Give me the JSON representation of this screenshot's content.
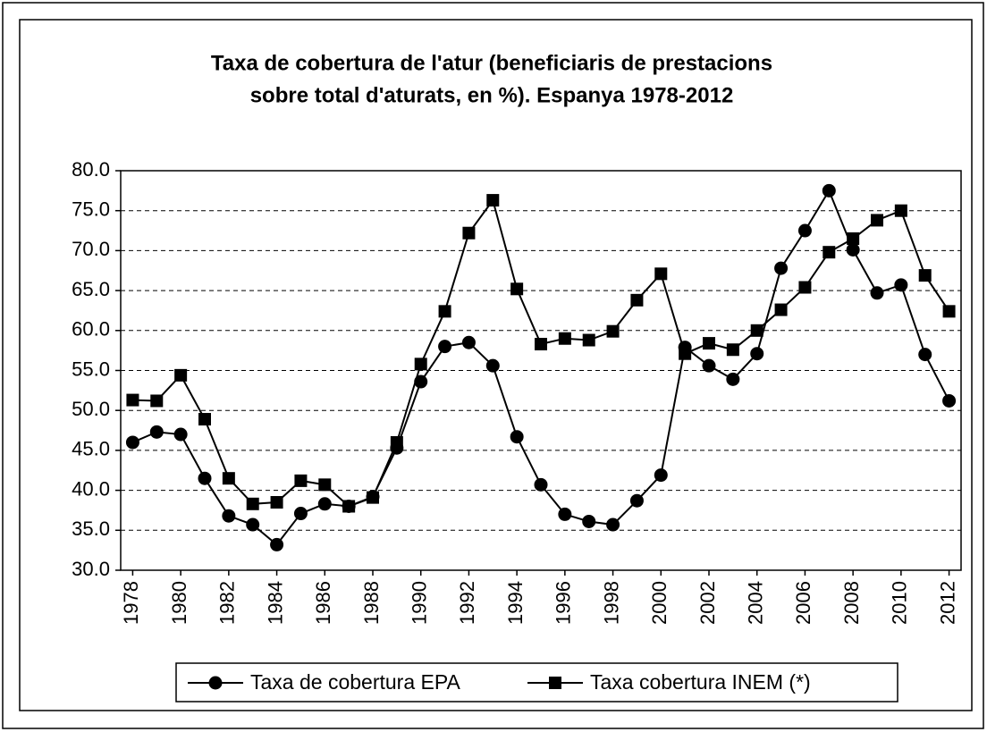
{
  "chart_data": {
    "type": "line",
    "title": [
      "Taxa de cobertura de l'atur (beneficiaris de prestacions",
      "sobre total d'aturats, en %). Espanya 1978-2012"
    ],
    "x": [
      1978,
      1979,
      1980,
      1981,
      1982,
      1983,
      1984,
      1985,
      1986,
      1987,
      1988,
      1989,
      1990,
      1991,
      1992,
      1993,
      1994,
      1995,
      1996,
      1997,
      1998,
      1999,
      2000,
      2001,
      2002,
      2003,
      2004,
      2005,
      2006,
      2007,
      2008,
      2009,
      2010,
      2011,
      2012
    ],
    "xlim": [
      1977.5,
      2012.5
    ],
    "xticks": [
      1978,
      1980,
      1982,
      1984,
      1986,
      1988,
      1990,
      1992,
      1994,
      1996,
      1998,
      2000,
      2002,
      2004,
      2006,
      2008,
      2010,
      2012
    ],
    "ylim": [
      30,
      80
    ],
    "yticks": [
      {
        "value": 30,
        "label": "30.0"
      },
      {
        "value": 35,
        "label": "35.0"
      },
      {
        "value": 40,
        "label": "40.0"
      },
      {
        "value": 45,
        "label": "45.0"
      },
      {
        "value": 50,
        "label": "50.0"
      },
      {
        "value": 55,
        "label": "55.0"
      },
      {
        "value": 60,
        "label": "60.0"
      },
      {
        "value": 65,
        "label": "65.0"
      },
      {
        "value": 70,
        "label": "70.0"
      },
      {
        "value": 75,
        "label": "75.0"
      },
      {
        "value": 80,
        "label": "80.0"
      }
    ],
    "grid": true,
    "legend": "bottom",
    "series": [
      {
        "name": "Taxa de cobertura EPA",
        "color": "#000000",
        "marker": "circle",
        "values": [
          46.0,
          47.3,
          47.0,
          41.5,
          36.8,
          35.7,
          33.2,
          37.1,
          38.3,
          38.0,
          39.2,
          45.3,
          53.6,
          58.0,
          58.5,
          55.6,
          46.7,
          40.7,
          37.0,
          36.1,
          35.7,
          38.7,
          41.9,
          57.9,
          55.6,
          53.9,
          57.1,
          67.8,
          72.5,
          77.5,
          70.1,
          64.7,
          65.7,
          57.0,
          51.2
        ]
      },
      {
        "name": "Taxa cobertura INEM (*)",
        "color": "#000000",
        "marker": "square",
        "values": [
          51.3,
          51.2,
          54.4,
          48.9,
          41.5,
          38.3,
          38.5,
          41.2,
          40.7,
          38.0,
          39.1,
          46.0,
          55.8,
          62.4,
          72.2,
          76.3,
          65.2,
          58.3,
          59.0,
          58.8,
          59.9,
          63.8,
          67.1,
          57.1,
          58.4,
          57.6,
          60.0,
          62.6,
          65.4,
          69.8,
          71.5,
          73.8,
          75.0,
          66.9,
          62.4
        ]
      }
    ]
  }
}
